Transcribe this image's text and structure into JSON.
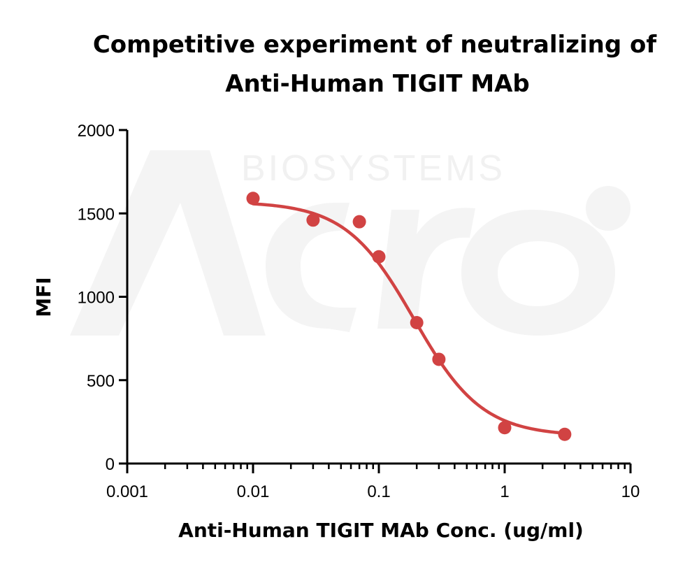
{
  "chart_data": {
    "type": "scatter",
    "title": [
      "Competitive experiment of neutralizing of",
      "Anti-Human TIGIT MAb"
    ],
    "xlabel": "Anti-Human TIGIT MAb Conc. (ug/ml)",
    "ylabel": "MFI",
    "x_scale": "log",
    "xlim": [
      0.001,
      10
    ],
    "ylim": [
      0,
      2000
    ],
    "x_ticks": [
      0.001,
      0.01,
      0.1,
      1,
      10
    ],
    "x_tick_labels": [
      "0.001",
      "0.01",
      "0.1",
      "1",
      "10"
    ],
    "y_ticks": [
      0,
      500,
      1000,
      1500,
      2000
    ],
    "y_tick_labels": [
      "0",
      "500",
      "1000",
      "1500",
      "2000"
    ],
    "grid": false,
    "series": [
      {
        "color": "#d14343",
        "points": [
          {
            "x": 0.01,
            "y": 1590
          },
          {
            "x": 0.03,
            "y": 1460
          },
          {
            "x": 0.07,
            "y": 1450
          },
          {
            "x": 0.1,
            "y": 1240
          },
          {
            "x": 0.2,
            "y": 845
          },
          {
            "x": 0.3,
            "y": 625
          },
          {
            "x": 1,
            "y": 215
          },
          {
            "x": 3,
            "y": 175
          }
        ],
        "fit": {
          "model": "4PL",
          "top": 1570,
          "bottom": 165,
          "ic50": 0.19,
          "hill": 1.6,
          "x_range": [
            0.01,
            3
          ]
        }
      }
    ],
    "watermark": "Acro BIOSYSTEMS"
  }
}
